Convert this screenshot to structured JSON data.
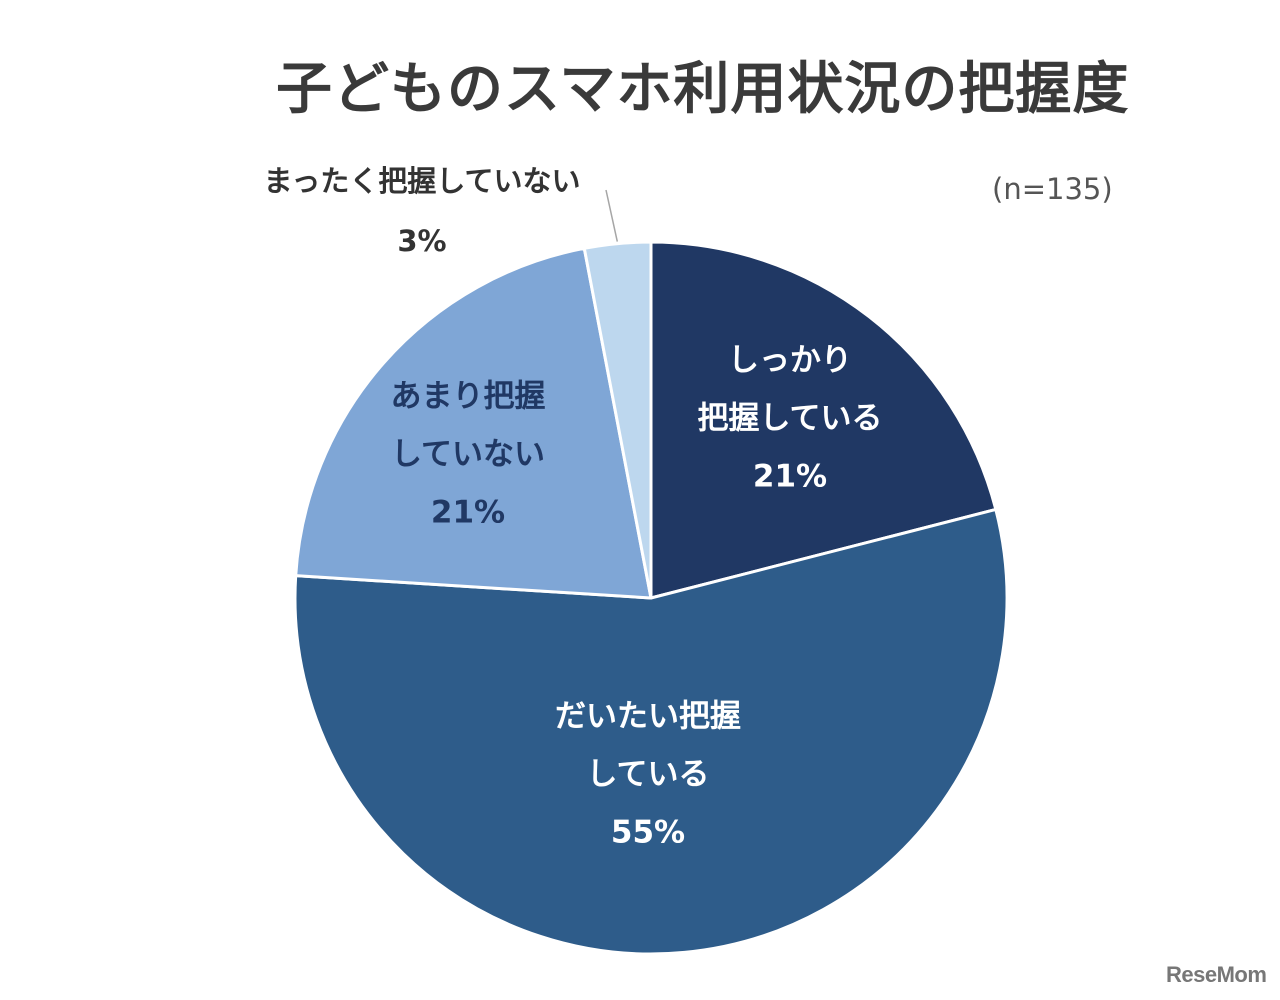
{
  "chart_data": {
    "type": "pie",
    "title": "子どものスマホ利用状況の把握度",
    "note": "(n=135)",
    "start_angle_deg": 0,
    "direction": "clockwise",
    "slices": [
      {
        "label_lines": [
          "しっかり",
          "把握している"
        ],
        "value": 21,
        "value_label": "21%",
        "color": "#203864",
        "label_color": "#ffffff",
        "label_position": "inside"
      },
      {
        "label_lines": [
          "だいたい把握",
          "している"
        ],
        "value": 55,
        "value_label": "55%",
        "color": "#2e5c8a",
        "label_color": "#ffffff",
        "label_position": "inside"
      },
      {
        "label_lines": [
          "あまり把握",
          "していない"
        ],
        "value": 21,
        "value_label": "21%",
        "color": "#7fa6d6",
        "label_color": "#203864",
        "label_position": "inside"
      },
      {
        "label_lines": [
          "まったく把握していない"
        ],
        "value": 3,
        "value_label": "3%",
        "color": "#bdd7ee",
        "label_color": "#333333",
        "label_position": "outside-leader"
      }
    ]
  },
  "watermark": "ReseMom"
}
